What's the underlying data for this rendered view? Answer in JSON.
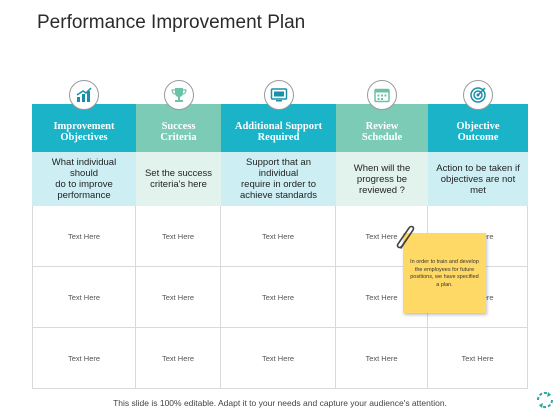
{
  "title": "Performance Improvement Plan",
  "columns": [
    {
      "header": "Improvement\nObjectives",
      "description": "What individual should\ndo to improve\nperformance",
      "color": "#1ab3c8",
      "desc_bg": "#cdeff4",
      "icon": "growth-chart-icon"
    },
    {
      "header": "Success\nCriteria",
      "description": "Set the success\ncriteria's here",
      "color": "#7ccbb7",
      "desc_bg": "#e2f3ee",
      "icon": "trophy-icon"
    },
    {
      "header": "Additional Support\nRequired",
      "description": "Support that an individual\nrequire in order to\nachieve standards",
      "color": "#1ab3c8",
      "desc_bg": "#cdeff4",
      "icon": "monitor-icon"
    },
    {
      "header": "Review\nSchedule",
      "description": "When will the\nprogress be\nreviewed ?",
      "color": "#7ccbb7",
      "desc_bg": "#e2f3ee",
      "icon": "calendar-icon"
    },
    {
      "header": "Objective\nOutcome",
      "description": "Action to be taken if\nobjectives are not met",
      "color": "#1ab3c8",
      "desc_bg": "#cdeff4",
      "icon": "target-icon"
    }
  ],
  "rows": [
    [
      "Text Here",
      "Text Here",
      "Text Here",
      "Text Here",
      "Text Here"
    ],
    [
      "Text Here",
      "Text Here",
      "Text Here",
      "Text Here",
      "Text Here"
    ],
    [
      "Text Here",
      "Text Here",
      "Text Here",
      "Text Here",
      "Text Here"
    ]
  ],
  "sticky_note": "In order to train and develop the employees for future positions, we have specified a plan.",
  "footer": "This slide is 100% editable. Adapt it to your needs and capture your audience's attention."
}
